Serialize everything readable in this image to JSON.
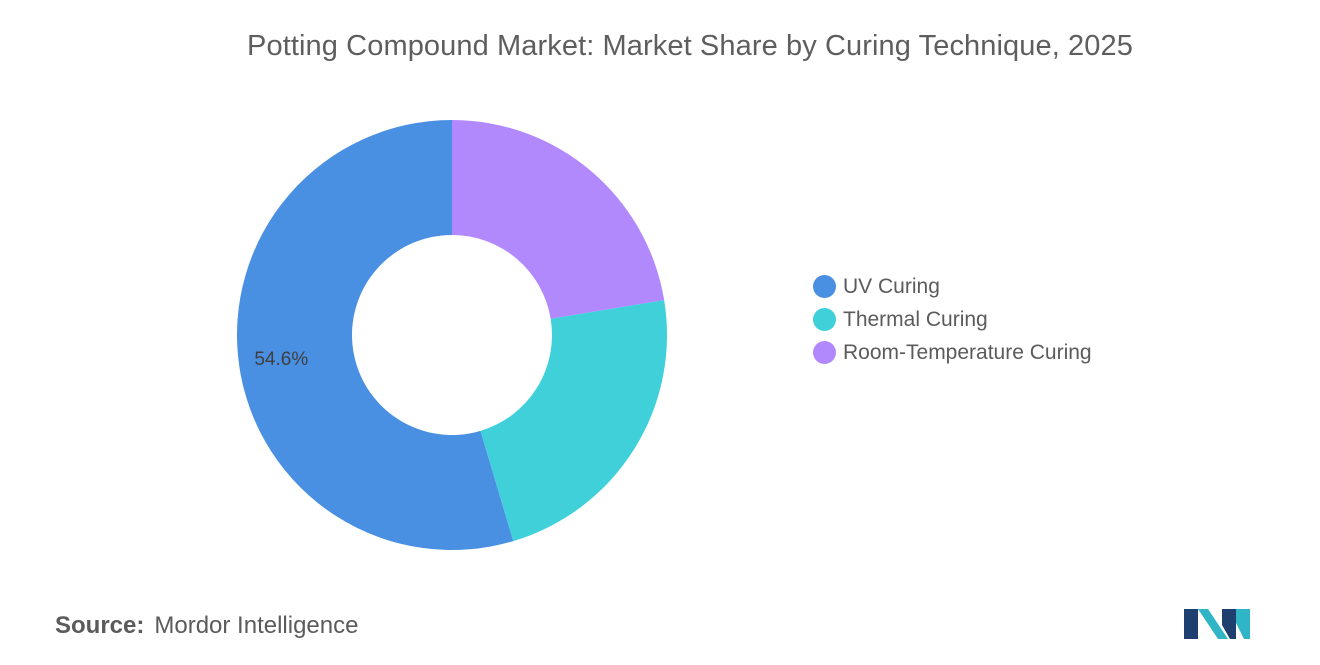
{
  "chart_data": {
    "type": "pie",
    "donut": true,
    "title": "Potting Compound Market: Market Share by Curing Technique, 2025",
    "categories": [
      "UV Curing",
      "Thermal Curing",
      "Room-Temperature Curing"
    ],
    "values": [
      54.6,
      23.0,
      22.4
    ],
    "unit": "%",
    "colors": [
      "#4a90e2",
      "#3fd0da",
      "#b288fd"
    ],
    "data_labels": [
      "54.6%",
      "",
      ""
    ],
    "legend_position": "right",
    "start_angle_deg": 0,
    "direction": "counterclockwise"
  },
  "source": {
    "label": "Source:",
    "value": "Mordor Intelligence"
  },
  "logo": {
    "icon": "mordor-intelligence-logo-icon",
    "colors": [
      "#1f3f6e",
      "#2fb5c6"
    ]
  }
}
